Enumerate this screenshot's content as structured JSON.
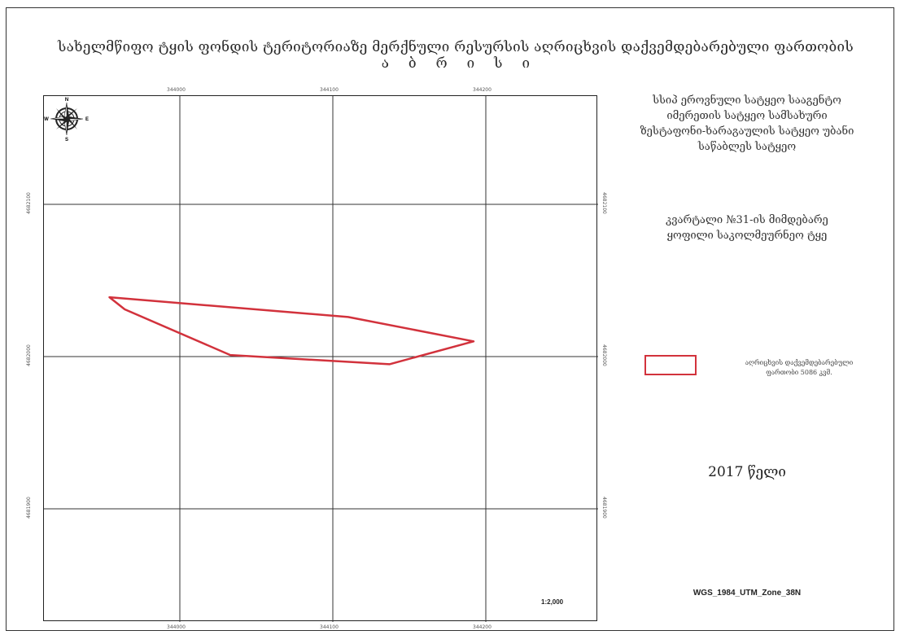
{
  "title": {
    "line1": "სახელმწიფო ტყის ფონდის ტერიტორიაზე მერქნული რესურსის აღრიცხვის დაქვემდებარებული ფართობის",
    "line2": "ა ბ რ ი ს ი"
  },
  "organization": {
    "lines": [
      "სსიპ ეროვნული სატყეო სააგენტო",
      "იმერეთის სატყეო სამსახური",
      "ზესტაფონი-ხარაგაულის სატყეო უბანი",
      "საწაბლეს სატყეო"
    ]
  },
  "quarter": {
    "lines": [
      "კვარტალი №31-ის მიმდებარე",
      "ყოფილი საკოლმეურნეო ტყე"
    ]
  },
  "legend": {
    "color": "#d2323c",
    "lines": [
      "აღრიცხვის დაქვემდებარებული",
      "ფართობი 5086 კვმ."
    ]
  },
  "year": "2017 წელი",
  "crs": "WGS_1984_UTM_Zone_38N",
  "scale": "1:2,000",
  "compass": {
    "icon": "compass-rose-icon",
    "n": "N",
    "s": "S",
    "e": "E",
    "w": "W"
  },
  "grid": {
    "x_labels": [
      "344000",
      "344100",
      "344200"
    ],
    "y_labels": [
      "4682100",
      "4682000",
      "4681900"
    ],
    "line_color": "#333333"
  },
  "parcel": {
    "color": "#d2323c",
    "vertices_m": [
      [
        343954,
        4682039
      ],
      [
        343964,
        4682031
      ],
      [
        344033,
        4682001
      ],
      [
        344137,
        4681995
      ],
      [
        344192,
        4682010
      ],
      [
        344110,
        4682026
      ],
      [
        343954,
        4682039
      ]
    ]
  }
}
